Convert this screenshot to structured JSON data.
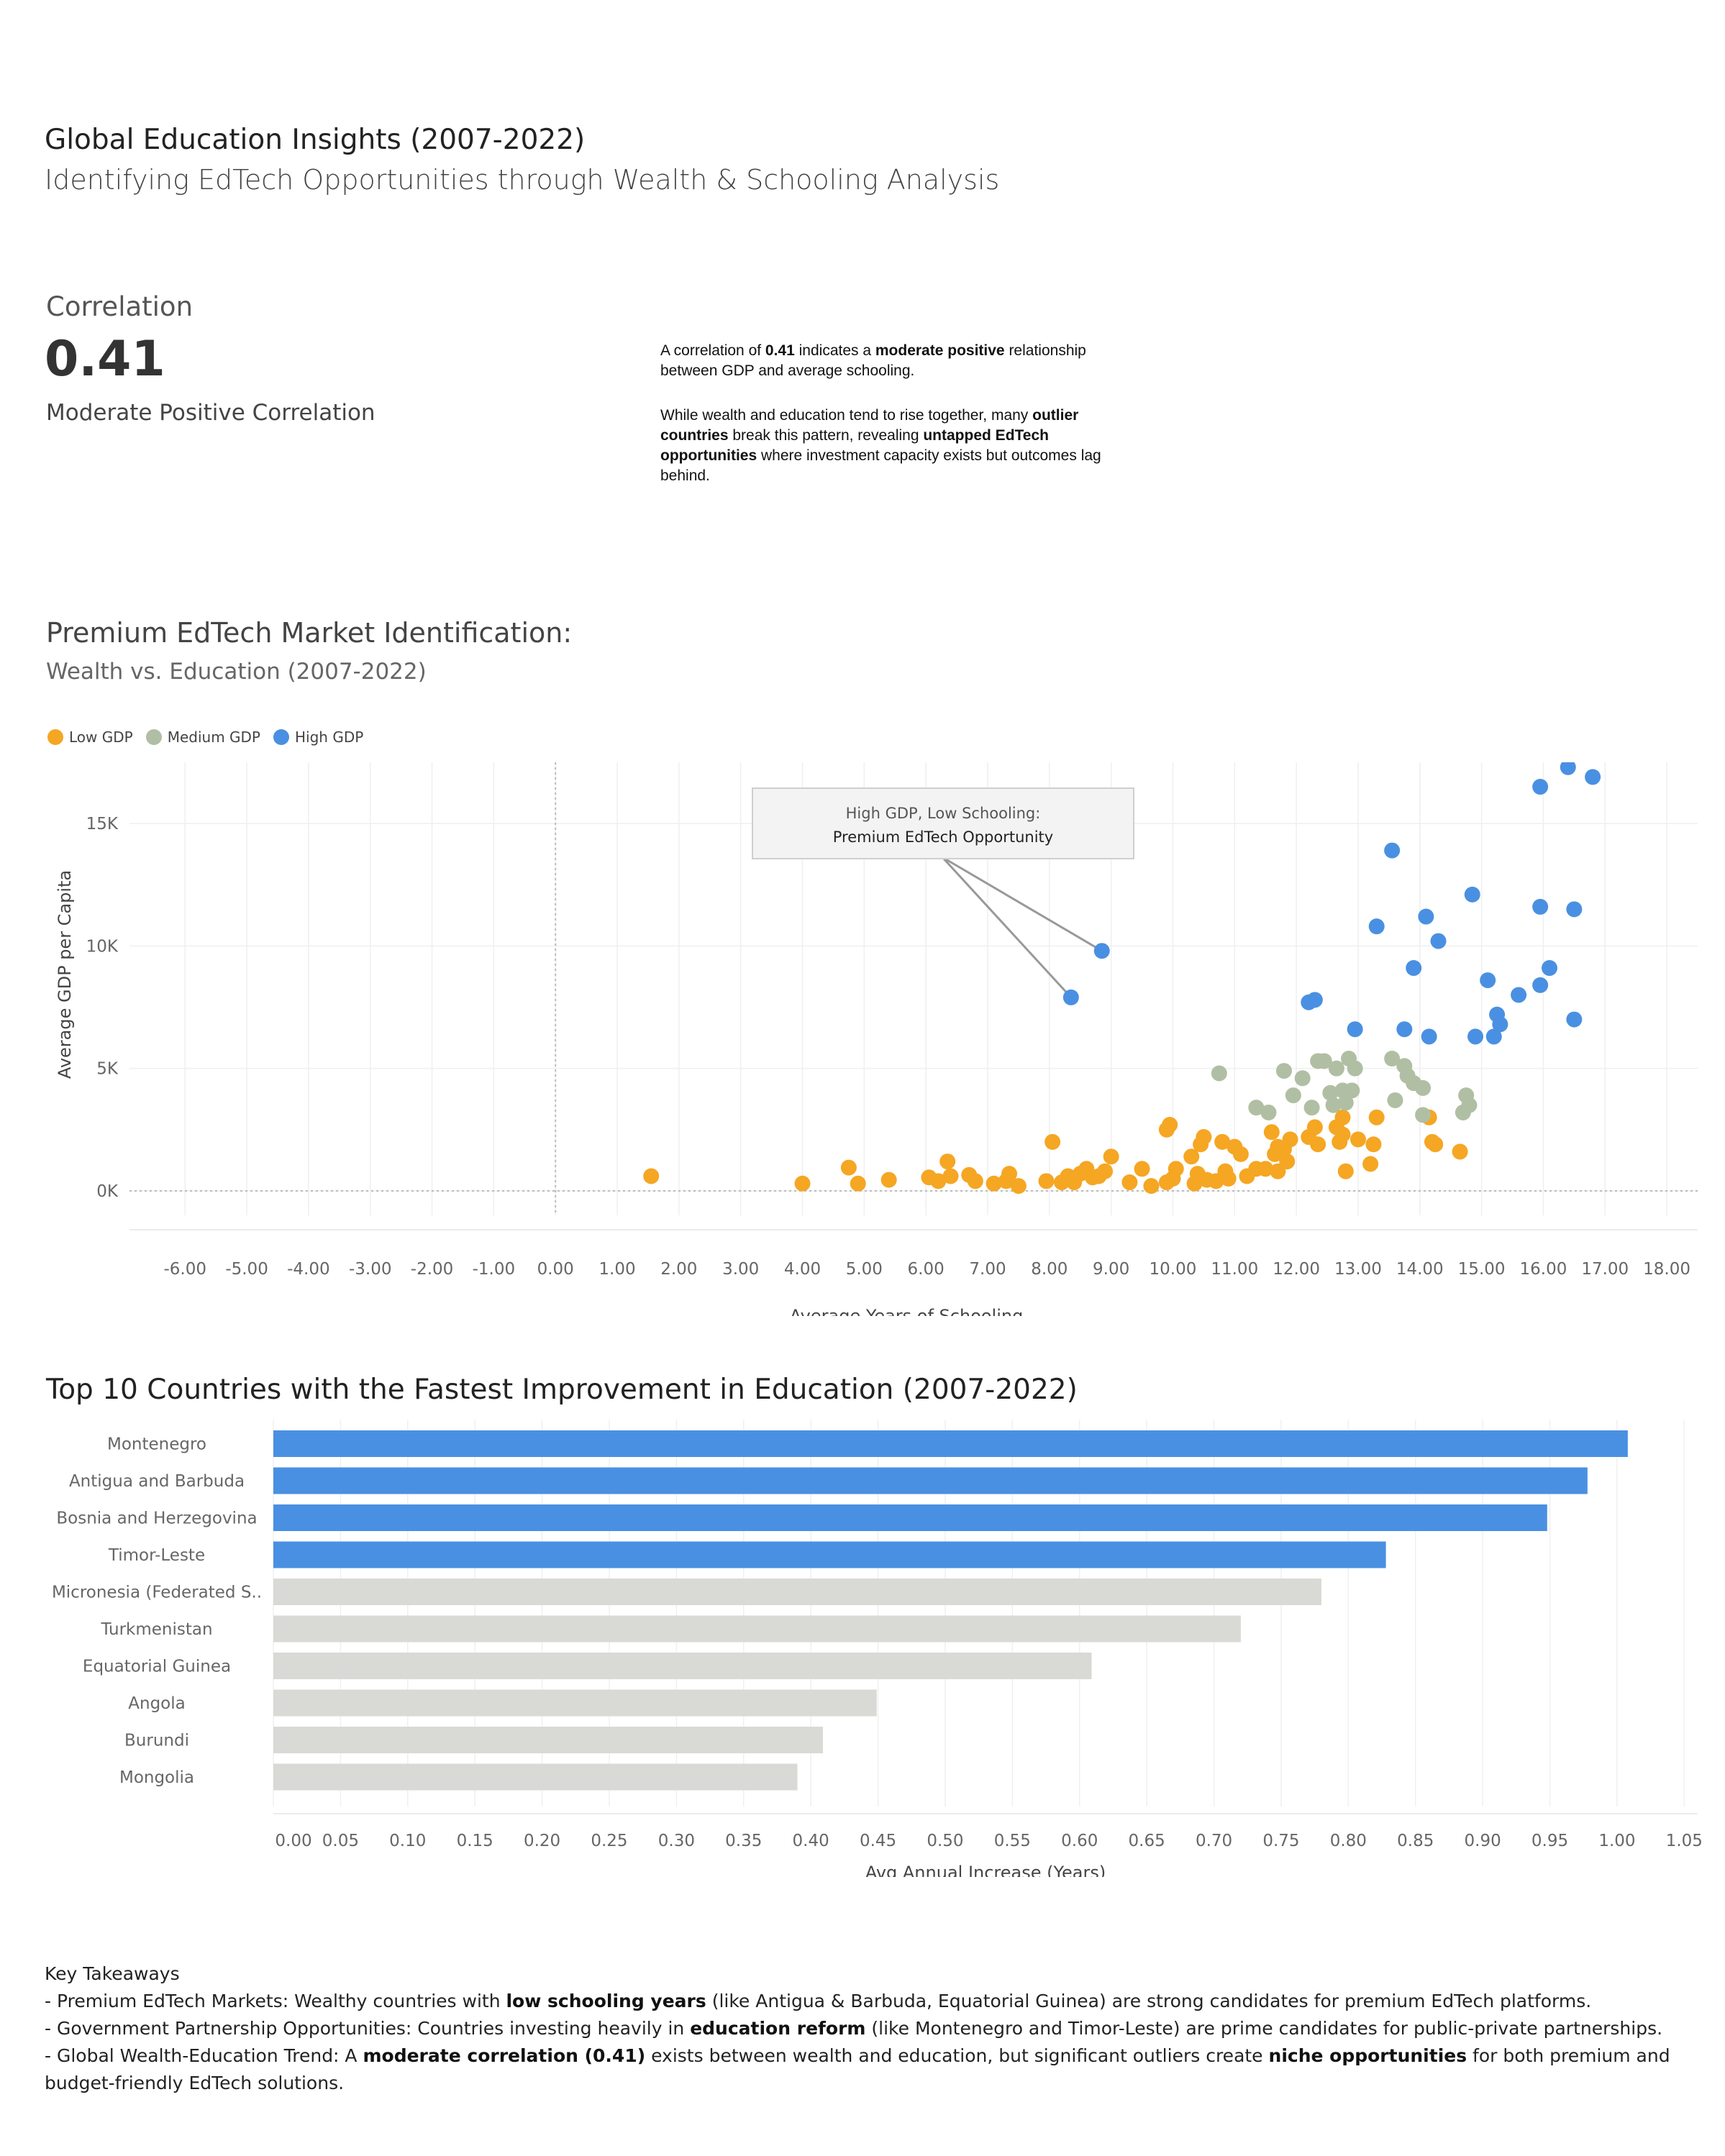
{
  "header": {
    "title": "Global Education Insights  (2007-2022)",
    "subtitle": "Identifying EdTech Opportunities through Wealth & Schooling Analysis"
  },
  "kpi": {
    "label": "Correlation",
    "value": "0.41",
    "description": "Moderate Positive Correlation"
  },
  "note": {
    "p1": [
      "A correlation of ",
      "0.41",
      " indicates a ",
      "moderate positive",
      " relationship between GDP and average schooling."
    ],
    "p2": [
      "While wealth and education tend to rise together, many ",
      "outlier countries",
      " break this pattern, revealing ",
      "untapped EdTech opportunities",
      " where investment capacity exists but outcomes lag behind."
    ]
  },
  "colors": {
    "low": "#F5A623",
    "medium": "#B0BFA3",
    "high": "#4A90E2",
    "bar_highlight": "#4A90E2",
    "bar_default": "#D9D9D6"
  },
  "chart_data": [
    {
      "type": "scatter",
      "title": "Premium EdTech Market Identification:",
      "subtitle": "Wealth vs. Education (2007-2022)",
      "xlabel": "Average Years of Schooling",
      "ylabel": "Average GDP per Capita",
      "xlim": [
        -6.9,
        18.5
      ],
      "ylim": [
        -1000,
        17500
      ],
      "x_ticks": [
        "-6.00",
        "-5.00",
        "-4.00",
        "-3.00",
        "-2.00",
        "-1.00",
        "0.00",
        "1.00",
        "2.00",
        "3.00",
        "4.00",
        "5.00",
        "6.00",
        "7.00",
        "8.00",
        "9.00",
        "10.00",
        "11.00",
        "12.00",
        "13.00",
        "14.00",
        "15.00",
        "16.00",
        "17.00",
        "18.00"
      ],
      "y_ticks": [
        {
          "value": 0,
          "label": "0K"
        },
        {
          "value": 5000,
          "label": "5K"
        },
        {
          "value": 10000,
          "label": "10K"
        },
        {
          "value": 15000,
          "label": "15K"
        }
      ],
      "grid": true,
      "legend_position": "top-left",
      "annotation": {
        "line1": "High GDP, Low Schooling:",
        "line2": "Premium EdTech Opportunity",
        "targets": [
          [
            8.85,
            9800
          ],
          [
            8.35,
            7900
          ]
        ]
      },
      "series": [
        {
          "name": "Low GDP",
          "color": "#F5A623",
          "points": [
            [
              1.55,
              600
            ],
            [
              4.0,
              300
            ],
            [
              4.75,
              950
            ],
            [
              4.9,
              300
            ],
            [
              5.4,
              450
            ],
            [
              6.05,
              550
            ],
            [
              6.2,
              400
            ],
            [
              6.35,
              1200
            ],
            [
              6.4,
              600
            ],
            [
              6.7,
              650
            ],
            [
              6.8,
              400
            ],
            [
              7.1,
              300
            ],
            [
              7.3,
              400
            ],
            [
              7.35,
              700
            ],
            [
              7.5,
              200
            ],
            [
              7.95,
              400
            ],
            [
              8.05,
              2000
            ],
            [
              8.2,
              350
            ],
            [
              8.3,
              600
            ],
            [
              8.4,
              350
            ],
            [
              8.5,
              700
            ],
            [
              8.6,
              900
            ],
            [
              8.7,
              550
            ],
            [
              8.8,
              600
            ],
            [
              8.9,
              800
            ],
            [
              9.0,
              1400
            ],
            [
              9.3,
              350
            ],
            [
              9.5,
              900
            ],
            [
              9.65,
              200
            ],
            [
              9.9,
              2500
            ],
            [
              9.95,
              2700
            ],
            [
              9.9,
              350
            ],
            [
              10.0,
              500
            ],
            [
              10.05,
              900
            ],
            [
              10.3,
              1400
            ],
            [
              10.35,
              300
            ],
            [
              10.4,
              700
            ],
            [
              10.45,
              1900
            ],
            [
              10.5,
              2200
            ],
            [
              10.55,
              450
            ],
            [
              10.7,
              400
            ],
            [
              10.8,
              2000
            ],
            [
              10.85,
              800
            ],
            [
              10.9,
              500
            ],
            [
              11.0,
              1800
            ],
            [
              11.1,
              1500
            ],
            [
              11.2,
              600
            ],
            [
              11.35,
              900
            ],
            [
              11.5,
              900
            ],
            [
              11.6,
              2400
            ],
            [
              11.65,
              1500
            ],
            [
              11.7,
              1800
            ],
            [
              11.7,
              800
            ],
            [
              11.8,
              1700
            ],
            [
              11.85,
              1200
            ],
            [
              11.9,
              2100
            ],
            [
              12.2,
              2200
            ],
            [
              12.3,
              2600
            ],
            [
              12.35,
              1900
            ],
            [
              12.65,
              2600
            ],
            [
              12.7,
              2000
            ],
            [
              12.75,
              2300
            ],
            [
              12.8,
              800
            ],
            [
              12.75,
              3000
            ],
            [
              13.0,
              2100
            ],
            [
              13.2,
              1100
            ],
            [
              13.25,
              1900
            ],
            [
              13.3,
              3000
            ],
            [
              14.15,
              3000
            ],
            [
              14.2,
              2000
            ],
            [
              14.25,
              1900
            ],
            [
              14.65,
              1600
            ]
          ]
        },
        {
          "name": "Medium GDP",
          "color": "#B0BFA3",
          "points": [
            [
              10.75,
              4800
            ],
            [
              11.35,
              3400
            ],
            [
              11.55,
              3200
            ],
            [
              11.8,
              4900
            ],
            [
              11.95,
              3900
            ],
            [
              12.1,
              4600
            ],
            [
              12.25,
              3400
            ],
            [
              12.35,
              5300
            ],
            [
              12.45,
              5300
            ],
            [
              12.55,
              4000
            ],
            [
              12.6,
              3500
            ],
            [
              12.65,
              5000
            ],
            [
              12.75,
              4100
            ],
            [
              12.8,
              3600
            ],
            [
              12.85,
              5400
            ],
            [
              12.9,
              4100
            ],
            [
              12.95,
              5000
            ],
            [
              13.55,
              5400
            ],
            [
              13.6,
              3700
            ],
            [
              13.75,
              5100
            ],
            [
              13.8,
              4700
            ],
            [
              13.9,
              4400
            ],
            [
              14.05,
              4200
            ],
            [
              14.05,
              3100
            ],
            [
              14.7,
              3200
            ],
            [
              14.75,
              3900
            ],
            [
              14.8,
              3500
            ]
          ]
        },
        {
          "name": "High GDP",
          "color": "#4A90E2",
          "points": [
            [
              8.35,
              7900
            ],
            [
              8.85,
              9800
            ],
            [
              12.2,
              7700
            ],
            [
              12.3,
              7800
            ],
            [
              12.95,
              6600
            ],
            [
              13.3,
              10800
            ],
            [
              13.55,
              13900
            ],
            [
              13.75,
              6600
            ],
            [
              13.9,
              9100
            ],
            [
              14.1,
              11200
            ],
            [
              14.15,
              6300
            ],
            [
              14.3,
              10200
            ],
            [
              14.85,
              12100
            ],
            [
              14.9,
              6300
            ],
            [
              15.1,
              8600
            ],
            [
              15.2,
              6300
            ],
            [
              15.25,
              7200
            ],
            [
              15.3,
              6800
            ],
            [
              15.6,
              8000
            ],
            [
              15.95,
              16500
            ],
            [
              15.95,
              11600
            ],
            [
              15.95,
              8400
            ],
            [
              16.1,
              9100
            ],
            [
              16.4,
              17300
            ],
            [
              16.5,
              11500
            ],
            [
              16.5,
              7000
            ],
            [
              16.8,
              16900
            ]
          ]
        }
      ]
    },
    {
      "type": "bar",
      "orientation": "horizontal",
      "title": "Top 10 Countries with the Fastest Improvement in Education (2007-2022)",
      "xlabel": "Avg Annual Increase (Years)",
      "xlim": [
        0,
        1.06
      ],
      "x_ticks": [
        "0.00",
        "0.05",
        "0.10",
        "0.15",
        "0.20",
        "0.25",
        "0.30",
        "0.35",
        "0.40",
        "0.45",
        "0.50",
        "0.55",
        "0.60",
        "0.65",
        "0.70",
        "0.75",
        "0.80",
        "0.85",
        "0.90",
        "0.95",
        "1.00",
        "1.05"
      ],
      "grid": true,
      "categories": [
        "Montenegro",
        "Antigua and Barbuda",
        "Bosnia and Herzegovina",
        "Timor-Leste",
        "Micronesia (Federated S..",
        "Turkmenistan",
        "Equatorial Guinea",
        "Angola",
        "Burundi",
        "Mongolia"
      ],
      "values": [
        1.008,
        0.978,
        0.948,
        0.828,
        0.78,
        0.72,
        0.609,
        0.449,
        0.409,
        0.39
      ],
      "highlight": [
        true,
        true,
        true,
        true,
        false,
        false,
        false,
        false,
        false,
        false
      ]
    }
  ],
  "takeaways": {
    "heading": "Key Takeaways",
    "lines": [
      [
        "- Premium EdTech Markets: Wealthy countries with ",
        "low schooling years",
        " (like Antigua & Barbuda, Equatorial Guinea) are strong candidates for premium EdTech platforms."
      ],
      [
        "- Government Partnership Opportunities: Countries investing heavily in ",
        "education reform",
        " (like Montenegro and Timor-Leste) are prime candidates for public-private partnerships."
      ],
      [
        "- Global Wealth-Education Trend: A ",
        "moderate correlation (0.41)",
        " exists between wealth and education, but significant outliers create ",
        "niche opportunities",
        " for both premium and budget-friendly EdTech solutions."
      ]
    ]
  }
}
